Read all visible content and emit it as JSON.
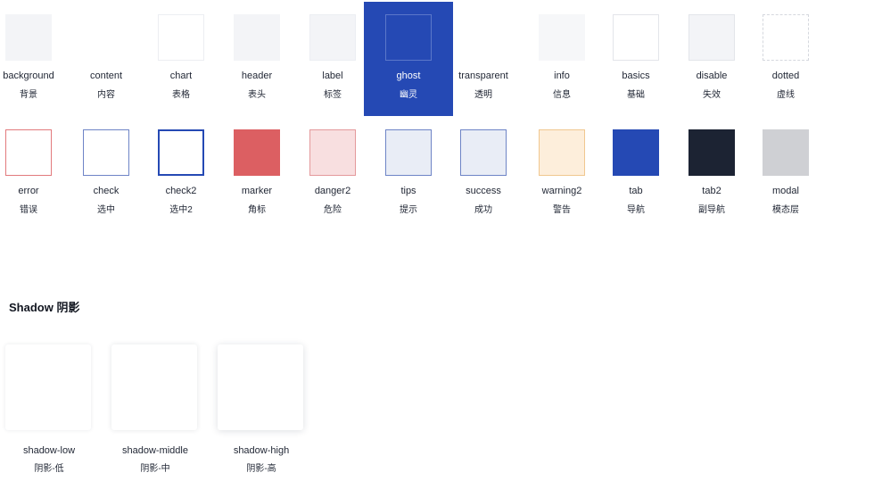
{
  "swatches_row1": [
    {
      "name": "background",
      "cn": "背景",
      "fill": "#f3f4f7",
      "border": "none",
      "style": "solid"
    },
    {
      "name": "content",
      "cn": "内容",
      "fill": "#ffffff",
      "border": "none",
      "style": "solid"
    },
    {
      "name": "chart",
      "cn": "表格",
      "fill": "#ffffff",
      "border": "#eceef2",
      "style": "solid"
    },
    {
      "name": "header",
      "cn": "表头",
      "fill": "#f3f4f7",
      "border": "none",
      "style": "solid"
    },
    {
      "name": "label",
      "cn": "标签",
      "fill": "#f3f4f7",
      "border": "#eceef2",
      "style": "solid"
    },
    {
      "name": "ghost",
      "cn": "幽灵",
      "fill": "#2549b4",
      "border": "#5b77c9",
      "style": "solid",
      "highlight": true
    },
    {
      "name": "transparent",
      "cn": "透明",
      "fill": "transparent",
      "border": "none",
      "style": "solid"
    },
    {
      "name": "info",
      "cn": "信息",
      "fill": "#f6f7f9",
      "border": "none",
      "style": "solid"
    },
    {
      "name": "basics",
      "cn": "基础",
      "fill": "#ffffff",
      "border": "#e3e5ea",
      "style": "solid"
    },
    {
      "name": "disable",
      "cn": "失效",
      "fill": "#f3f4f7",
      "border": "#e3e5ea",
      "style": "solid"
    },
    {
      "name": "dotted",
      "cn": "虚线",
      "fill": "#ffffff",
      "border": "#d5d8de",
      "style": "dashed"
    }
  ],
  "swatches_row2": [
    {
      "name": "error",
      "cn": "错误",
      "fill": "#ffffff",
      "border": "#e27a7d",
      "style": "solid"
    },
    {
      "name": "check",
      "cn": "选中",
      "fill": "#ffffff",
      "border": "#6e84c6",
      "style": "solid"
    },
    {
      "name": "check2",
      "cn": "选中2",
      "fill": "#ffffff",
      "border": "#2549b4",
      "style": "solid",
      "thick": true
    },
    {
      "name": "marker",
      "cn": "角标",
      "fill": "#dc5f62",
      "border": "none",
      "style": "solid"
    },
    {
      "name": "danger2",
      "cn": "危险",
      "fill": "#f8dfe0",
      "border": "#e4999b",
      "style": "solid"
    },
    {
      "name": "tips",
      "cn": "提示",
      "fill": "#e9edf6",
      "border": "#6e84c6",
      "style": "solid"
    },
    {
      "name": "success",
      "cn": "成功",
      "fill": "#e9edf6",
      "border": "#6e84c6",
      "style": "solid"
    },
    {
      "name": "warning2",
      "cn": "警告",
      "fill": "#fdeedb",
      "border": "#f0c78f",
      "style": "solid"
    },
    {
      "name": "tab",
      "cn": "导航",
      "fill": "#2549b4",
      "border": "none",
      "style": "solid"
    },
    {
      "name": "tab2",
      "cn": "副导航",
      "fill": "#1c2333",
      "border": "none",
      "style": "solid"
    },
    {
      "name": "modal",
      "cn": "模态层",
      "fill": "#cfd0d4",
      "border": "none",
      "style": "solid"
    }
  ],
  "shadow_section": {
    "title": "Shadow 阴影",
    "items": [
      {
        "name": "shadow-low",
        "cn": "阴影-低",
        "shadow": "0 0 4px rgba(30,40,60,0.10)"
      },
      {
        "name": "shadow-middle",
        "cn": "阴影-中",
        "shadow": "0 0 6px rgba(30,40,60,0.12)"
      },
      {
        "name": "shadow-high",
        "cn": "阴影-高",
        "shadow": "0 1px 8px rgba(30,40,60,0.15)"
      }
    ]
  }
}
